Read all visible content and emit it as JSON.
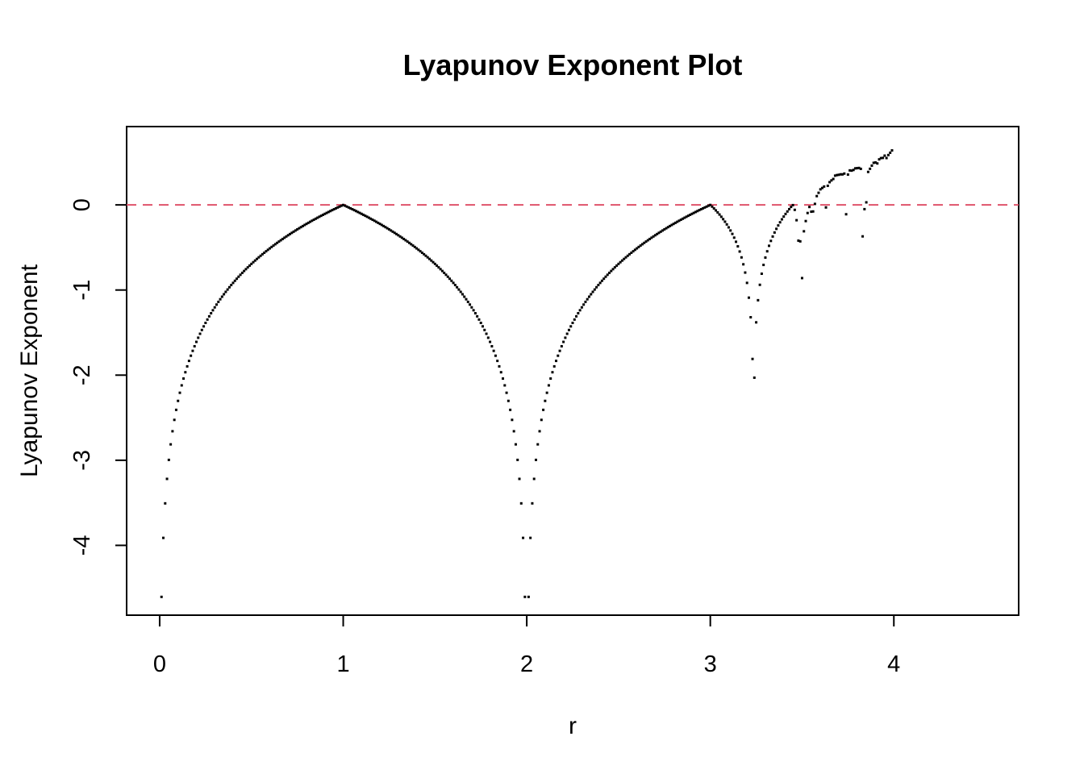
{
  "chart_data": {
    "type": "scatter",
    "title": "Lyapunov Exponent Plot",
    "xlabel": "r",
    "ylabel": "Lyapunov Exponent",
    "xlim": [
      -0.18,
      4.68
    ],
    "ylim": [
      -4.82,
      0.92
    ],
    "xticks": [
      0,
      1,
      2,
      3,
      4
    ],
    "yticks": [
      0,
      -1,
      -2,
      -3,
      -4
    ],
    "reference_line": {
      "y": 0,
      "style": "dashed",
      "color": "#df536b"
    },
    "point_color": "#000000",
    "grid": false,
    "legend": "none",
    "series": [
      {
        "description_source": "r from 0.01 to 4.00 in steps of 0.01",
        "r_start": 0.01,
        "r_end": 4.0,
        "r_step": 0.01,
        "outliers": [
          [
            3.21,
            -1.09
          ],
          [
            3.22,
            -1.32
          ],
          [
            3.23,
            -1.81
          ],
          [
            3.24,
            -2.03
          ],
          [
            3.25,
            -1.38
          ],
          [
            3.26,
            -1.12
          ],
          [
            3.47,
            -0.18
          ],
          [
            3.48,
            -0.42
          ],
          [
            3.5,
            -0.86
          ],
          [
            3.51,
            -0.31
          ],
          [
            3.52,
            -0.19
          ],
          [
            3.55,
            -0.08
          ],
          [
            3.63,
            -0.03
          ],
          [
            3.74,
            -0.11
          ],
          [
            3.83,
            -0.37
          ],
          [
            3.84,
            -0.05
          ],
          [
            3.85,
            0.03
          ]
        ]
      }
    ]
  }
}
